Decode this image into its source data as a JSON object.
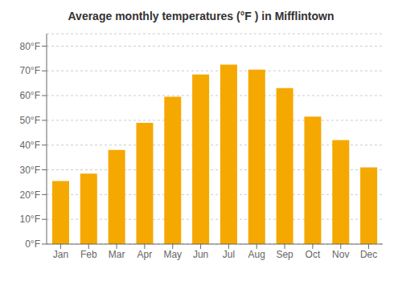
{
  "chart_data": {
    "type": "bar",
    "title": "Average monthly temperatures (°F ) in Mifflintown",
    "categories": [
      "Jan",
      "Feb",
      "Mar",
      "Apr",
      "May",
      "Jun",
      "Jul",
      "Aug",
      "Sep",
      "Oct",
      "Nov",
      "Dec"
    ],
    "values": [
      25.5,
      28.5,
      38,
      49,
      59.5,
      68.5,
      72.5,
      70.5,
      63,
      51.5,
      42,
      31
    ],
    "color": "#F5A800",
    "ylim": [
      0,
      85
    ],
    "yticks": [
      {
        "value": 0,
        "label": "0°F"
      },
      {
        "value": 10,
        "label": "10°F"
      },
      {
        "value": 20,
        "label": "20°F"
      },
      {
        "value": 30,
        "label": "30°F"
      },
      {
        "value": 40,
        "label": "40°F"
      },
      {
        "value": 50,
        "label": "50°F"
      },
      {
        "value": 60,
        "label": "60°F"
      },
      {
        "value": 70,
        "label": "70°F"
      },
      {
        "value": 80,
        "label": "80°F"
      }
    ],
    "grid": true
  }
}
